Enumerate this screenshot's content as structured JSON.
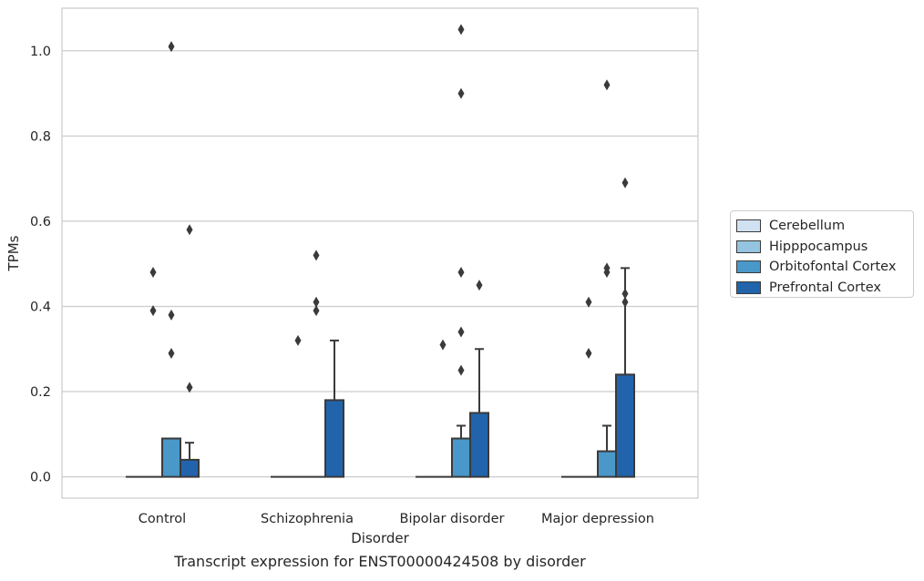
{
  "chart_data": {
    "type": "bar",
    "title": "Transcript expression for ENST00000424508 by disorder",
    "xlabel": "Disorder",
    "ylabel": "TPMs",
    "ylim": [
      -0.05,
      1.1
    ],
    "yticks": [
      0.0,
      0.2,
      0.4,
      0.6,
      0.8,
      1.0
    ],
    "ytick_labels": [
      "0.0",
      "0.2",
      "0.4",
      "0.6",
      "0.8",
      "1.0"
    ],
    "categories": [
      "Control",
      "Schizophrenia",
      "Bipolar disorder",
      "Major depression"
    ],
    "grid": "horizontal",
    "legend_position": "outside-right",
    "series": [
      {
        "name": "Cerebellum",
        "color": "#d0e1f2",
        "values": [
          0.0,
          0.0,
          0.0,
          0.0
        ],
        "error_upper": [
          null,
          null,
          null,
          null
        ],
        "outliers": [
          [],
          [],
          [],
          []
        ]
      },
      {
        "name": "Hipppocampus",
        "color": "#94c4df",
        "values": [
          0.0,
          0.0,
          0.0,
          0.0
        ],
        "error_upper": [
          null,
          null,
          null,
          null
        ],
        "outliers": [
          [
            0.48,
            0.39
          ],
          [
            0.32
          ],
          [
            0.31
          ],
          [
            0.41,
            0.29
          ]
        ]
      },
      {
        "name": "Orbitofontal Cortex",
        "color": "#4a98c9",
        "values": [
          0.09,
          0.0,
          0.09,
          0.06
        ],
        "error_upper": [
          null,
          null,
          0.12,
          0.12
        ],
        "outliers": [
          [
            1.01,
            0.38,
            0.29
          ],
          [
            0.52,
            0.41,
            0.39
          ],
          [
            0.9,
            0.48
          ],
          [
            0.49,
            0.48
          ]
        ]
      },
      {
        "name": "Prefrontal Cortex",
        "color": "#2164ab",
        "values": [
          0.04,
          0.18,
          0.15,
          0.24
        ],
        "error_upper": [
          0.08,
          0.32,
          0.3,
          0.49
        ],
        "outliers": [
          [
            0.58,
            0.21
          ],
          [],
          [
            0.45
          ],
          [
            0.43,
            0.41
          ]
        ]
      }
    ],
    "extra_outliers": [
      {
        "category": 2,
        "series": 2,
        "value": 1.05
      },
      {
        "category": 2,
        "series": 2,
        "value": 0.34
      },
      {
        "category": 2,
        "series": 2,
        "value": 0.25
      },
      {
        "category": 3,
        "series": 2,
        "value": 0.92
      },
      {
        "category": 3,
        "series": 3,
        "value": 0.69
      }
    ]
  }
}
